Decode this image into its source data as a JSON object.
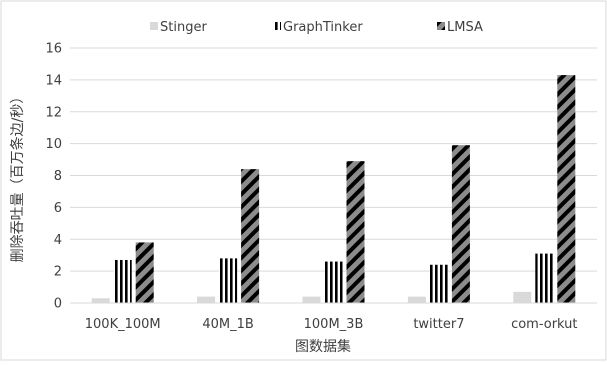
{
  "chart_data": {
    "type": "bar",
    "title": "",
    "xlabel": "图数据集",
    "ylabel": "删除吞吐量（百万条边/秒）",
    "ylim": [
      0,
      16
    ],
    "yticks": [
      0,
      2,
      4,
      6,
      8,
      10,
      12,
      14,
      16
    ],
    "grid": true,
    "legend_position": "top",
    "categories": [
      "100K_100M",
      "40M_1B",
      "100M_3B",
      "twitter7",
      "com-orkut"
    ],
    "series": [
      {
        "name": "Stinger",
        "values": [
          0.3,
          0.4,
          0.4,
          0.4,
          0.7
        ],
        "color": "#d9d9d9",
        "pattern": "solid"
      },
      {
        "name": "GraphTinker",
        "values": [
          2.7,
          2.8,
          2.6,
          2.4,
          3.1
        ],
        "color": "#000000",
        "pattern": "vertical-stripes"
      },
      {
        "name": "LMSA",
        "values": [
          3.8,
          8.4,
          8.9,
          9.9,
          14.3
        ],
        "color": "#808080",
        "pattern": "diagonal-stripes"
      }
    ]
  }
}
